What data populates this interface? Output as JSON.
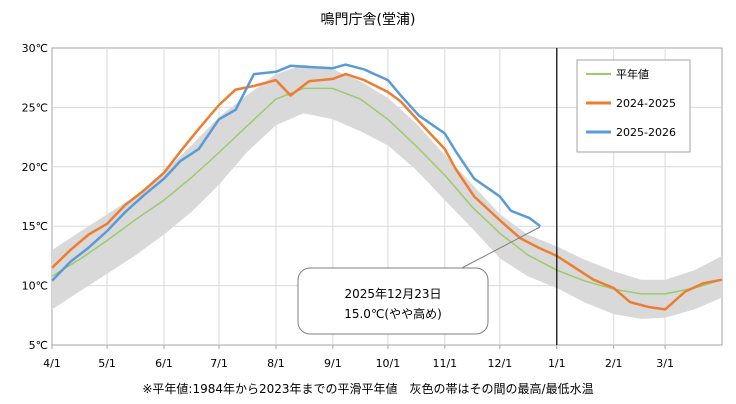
{
  "chart_data": {
    "type": "line",
    "title": "鳴門庁舎(堂浦)",
    "xlabel": "",
    "ylabel": "",
    "x_unit": "days since Apr 1",
    "xlim": [
      0,
      365
    ],
    "ylim": [
      5,
      30
    ],
    "yticks": [
      5,
      10,
      15,
      20,
      25,
      30
    ],
    "ytick_labels": [
      "5℃",
      "10℃",
      "15℃",
      "20℃",
      "25℃",
      "30℃"
    ],
    "xticks": [
      0,
      30,
      61,
      91,
      122,
      153,
      183,
      214,
      244,
      275,
      306,
      334
    ],
    "xtick_labels": [
      "4/1",
      "5/1",
      "6/1",
      "7/1",
      "8/1",
      "9/1",
      "10/1",
      "11/1",
      "12/1",
      "1/1",
      "2/1",
      "3/1"
    ],
    "vline_x": 275,
    "band": {
      "name": "灰色の帯 (最高/最低)",
      "x": [
        0,
        15,
        30,
        45,
        61,
        76,
        91,
        106,
        122,
        137,
        153,
        168,
        183,
        198,
        214,
        229,
        244,
        259,
        275,
        290,
        306,
        321,
        334,
        350,
        365
      ],
      "high": [
        13,
        14.5,
        16,
        17.5,
        19.6,
        21.8,
        24.2,
        26,
        27.8,
        28.6,
        28.2,
        27.2,
        25.8,
        23.7,
        21,
        18.5,
        16,
        14.3,
        13.3,
        12.2,
        11.2,
        10.5,
        10.5,
        11.3,
        12.5
      ],
      "low": [
        8,
        9.5,
        11,
        12.5,
        14.3,
        16.2,
        18.5,
        21.2,
        23.5,
        24.5,
        24,
        23,
        21.8,
        19.8,
        17.2,
        14.8,
        12.3,
        10.8,
        9.8,
        8.6,
        7.6,
        7.2,
        7.3,
        8,
        9
      ]
    },
    "series": [
      {
        "name": "平年値",
        "color": "#9ccb6b",
        "x": [
          0,
          15,
          30,
          45,
          61,
          76,
          91,
          106,
          122,
          137,
          153,
          168,
          183,
          198,
          214,
          229,
          244,
          259,
          275,
          290,
          306,
          321,
          334,
          350,
          365
        ],
        "values": [
          10.8,
          12.2,
          13.8,
          15.5,
          17.2,
          19.1,
          21.2,
          23.4,
          25.7,
          26.6,
          26.6,
          25.7,
          24,
          21.8,
          19.3,
          16.6,
          14.4,
          12.6,
          11.3,
          10.4,
          9.7,
          9.3,
          9.3,
          9.8,
          10.5
        ]
      },
      {
        "name": "2024-2025",
        "color": "#ed7d31",
        "x": [
          0,
          10,
          20,
          30,
          40,
          50,
          61,
          70,
          80,
          91,
          100,
          110,
          122,
          130,
          140,
          153,
          160,
          170,
          183,
          190,
          200,
          214,
          220,
          230,
          244,
          255,
          265,
          275,
          285,
          295,
          306,
          315,
          325,
          334,
          345,
          355,
          365
        ],
        "values": [
          11.5,
          13,
          14.3,
          15.2,
          16.8,
          18,
          19.5,
          21.3,
          23.2,
          25.2,
          26.5,
          26.8,
          27.3,
          26,
          27.2,
          27.4,
          27.8,
          27.3,
          26.3,
          25.5,
          23.8,
          21.5,
          19.8,
          17.5,
          15.5,
          14,
          13.2,
          12.5,
          11.5,
          10.5,
          9.8,
          8.6,
          8.2,
          8,
          9.5,
          10.2,
          10.5
        ]
      },
      {
        "name": "2025-2026",
        "color": "#5b9bd5",
        "x": [
          0,
          10,
          20,
          30,
          40,
          50,
          61,
          70,
          80,
          91,
          100,
          110,
          122,
          130,
          140,
          153,
          160,
          170,
          183,
          190,
          200,
          214,
          220,
          230,
          244,
          250,
          260,
          266
        ],
        "values": [
          10.4,
          12,
          13.2,
          14.6,
          16.2,
          17.6,
          19,
          20.5,
          21.5,
          24,
          24.8,
          27.8,
          28,
          28.5,
          28.4,
          28.3,
          28.6,
          28.2,
          27.3,
          26,
          24.3,
          22.8,
          21.3,
          19,
          17.5,
          16.3,
          15.7,
          15
        ]
      }
    ],
    "legend": {
      "position": "top-right",
      "entries": [
        "平年値",
        "2024-2025",
        "2025-2026"
      ]
    },
    "annotation": {
      "date": "2025年12月23日",
      "value": "15.0℃(やや高め)"
    },
    "footnote": "※平年値:1984年から2023年までの平滑平年値　灰色の帯はその間の最高/最低水温"
  }
}
